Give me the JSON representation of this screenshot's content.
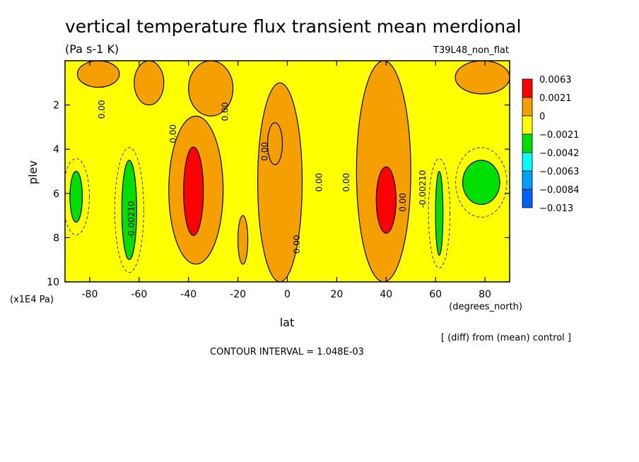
{
  "chart_data": {
    "type": "heatmap",
    "title": "vertical temperature flux transient mean merdional",
    "units": "(Pa s-1 K)",
    "experiment": "T39L48_non_flat",
    "xlabel": "lat",
    "x_units": "(degrees_north)",
    "ylabel": "plev",
    "y_units": "(x1E4 Pa)",
    "xlim": [
      -90,
      90
    ],
    "ylim": [
      10,
      0
    ],
    "x_ticks": [
      -80,
      -60,
      -40,
      -20,
      0,
      20,
      40,
      60,
      80
    ],
    "y_ticks": [
      2,
      4,
      6,
      8,
      10
    ],
    "x_tick_labels": [
      "-80",
      "-60",
      "-40",
      "-20",
      "0",
      "20",
      "40",
      "60",
      "80"
    ],
    "y_tick_labels": [
      "2",
      "4",
      "6",
      "8",
      "10"
    ],
    "colorbar": {
      "labels": [
        "0.0063",
        "0.0021",
        "0",
        "−0.0021",
        "−0.0042",
        "−0.0063",
        "−0.0084",
        "−0.013"
      ],
      "colors": [
        "#ff0000",
        "#f5a000",
        "#ffff00",
        "#00e000",
        "#00ffff",
        "#00a0ff",
        "#0060ff"
      ]
    },
    "contour_labels": [
      {
        "text": "0.00",
        "lat": -74,
        "plev": 2.2
      },
      {
        "text": "0.00",
        "lat": -45,
        "plev": 3.3
      },
      {
        "text": "0.00",
        "lat": -24,
        "plev": 2.3
      },
      {
        "text": "0.00",
        "lat": -8,
        "plev": 4.1
      },
      {
        "text": "0.00",
        "lat": 5,
        "plev": 8.3
      },
      {
        "text": "0.00",
        "lat": 14,
        "plev": 5.5
      },
      {
        "text": "0.00",
        "lat": 25,
        "plev": 5.5
      },
      {
        "text": "0.00",
        "lat": 48,
        "plev": 6.4
      },
      {
        "text": "-0.00210",
        "lat": -62,
        "plev": 7.2
      },
      {
        "text": "-0.00210",
        "lat": 56,
        "plev": 5.8
      }
    ],
    "regions": [
      {
        "level": "0 to 0.0021",
        "lat": [
          -62,
          -50
        ],
        "plev": [
          0,
          2.0
        ]
      },
      {
        "level": "0 to 0.0021",
        "lat": [
          -40,
          -22
        ],
        "plev": [
          0,
          2.5
        ]
      },
      {
        "level": "0 to 0.0021",
        "lat": [
          -48,
          -26
        ],
        "plev": [
          2.5,
          9.2
        ]
      },
      {
        "level": "0 to 0.0021",
        "lat": [
          -12,
          6
        ],
        "plev": [
          1.0,
          10
        ]
      },
      {
        "level": "0 to 0.0021",
        "lat": [
          28,
          50
        ],
        "plev": [
          0,
          10
        ]
      },
      {
        "level": "0 to 0.0021",
        "lat": [
          -85,
          -68
        ],
        "plev": [
          0,
          1.2
        ]
      },
      {
        "level": "0 to 0.0021",
        "lat": [
          68,
          90
        ],
        "plev": [
          0,
          1.5
        ]
      },
      {
        "level": "0 to 0.0021",
        "lat": [
          -20,
          -16
        ],
        "plev": [
          7.0,
          9.2
        ]
      },
      {
        "level": "0.0021 to 0.0063",
        "lat": [
          -8,
          -2
        ],
        "plev": [
          2.8,
          4.7
        ]
      },
      {
        "level": "0.0063",
        "lat": [
          -42,
          -34
        ],
        "plev": [
          3.9,
          7.9
        ]
      },
      {
        "level": "0.0063",
        "lat": [
          36,
          44
        ],
        "plev": [
          4.8,
          7.8
        ]
      },
      {
        "level": "-0.0021 to -0.0042",
        "lat": [
          -88,
          -83
        ],
        "plev": [
          5.0,
          7.3
        ]
      },
      {
        "level": "-0.0021 to -0.0042",
        "lat": [
          -67,
          -61
        ],
        "plev": [
          4.5,
          9.0
        ]
      },
      {
        "level": "-0.0021 to -0.0042",
        "lat": [
          71,
          86
        ],
        "plev": [
          4.5,
          6.5
        ]
      },
      {
        "level": "-0.0021 to -0.0042",
        "lat": [
          60,
          63
        ],
        "plev": [
          5.0,
          8.8
        ]
      }
    ]
  },
  "annotations": {
    "diff_note": "[ (diff) from (mean) control ]",
    "contour_interval": "CONTOUR INTERVAL = 1.048E-03"
  }
}
